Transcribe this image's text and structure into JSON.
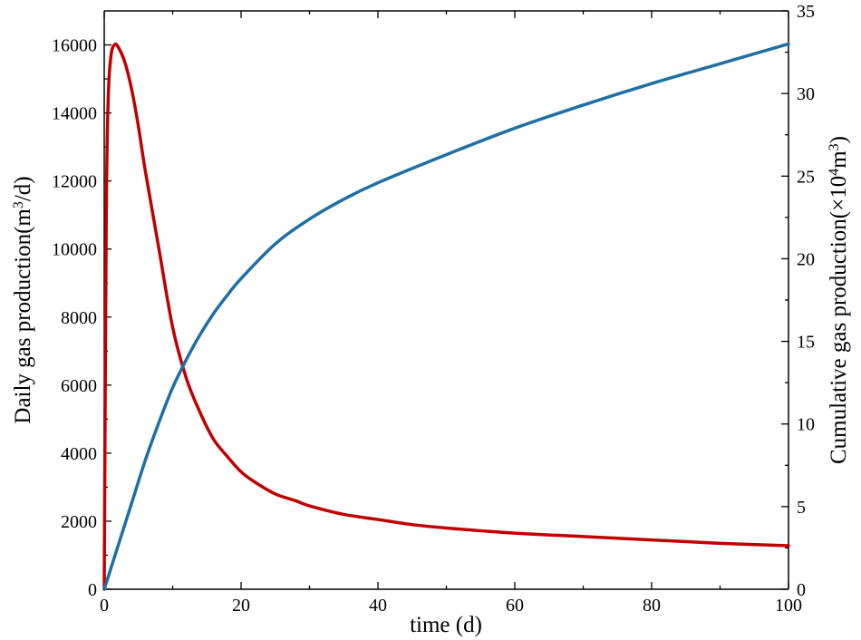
{
  "chart_data": {
    "type": "line",
    "xlabel": "time (d)",
    "ylabel_left": {
      "pre": "Daily gas production(m",
      "sup": "3",
      "post": "/d)"
    },
    "ylabel_right": {
      "pre": "Cumulative gas production(×10",
      "sup1": "4",
      "mid": "m",
      "sup2": "3",
      "post": ")"
    },
    "xlim": [
      0,
      100
    ],
    "ylim_left": [
      0,
      17000
    ],
    "ylim_right": [
      0,
      35
    ],
    "x_ticks": [
      0,
      20,
      40,
      60,
      80,
      100
    ],
    "y_left_ticks": [
      0,
      2000,
      4000,
      6000,
      8000,
      10000,
      12000,
      14000,
      16000
    ],
    "y_right_ticks": [
      0,
      5,
      10,
      15,
      20,
      25,
      30,
      35
    ],
    "grid": false,
    "legend": "none",
    "series": [
      {
        "axis": "left",
        "color": "#c00000",
        "x": [
          0,
          0.3,
          0.6,
          1.0,
          1.5,
          2,
          3,
          4,
          5,
          6,
          8,
          10,
          12,
          14,
          16,
          18,
          20,
          22,
          25,
          28,
          30,
          35,
          40,
          45,
          50,
          60,
          70,
          80,
          90,
          100
        ],
        "y": [
          0,
          11000,
          14500,
          15700,
          16000,
          15950,
          15500,
          14700,
          13600,
          12300,
          10000,
          7700,
          6200,
          5200,
          4400,
          3900,
          3450,
          3150,
          2800,
          2600,
          2450,
          2200,
          2050,
          1900,
          1800,
          1650,
          1550,
          1450,
          1350,
          1280
        ]
      },
      {
        "axis": "right",
        "color": "#1f6fa3",
        "x": [
          0,
          2,
          4,
          6,
          8,
          10,
          12,
          14,
          16,
          18,
          20,
          25,
          30,
          35,
          40,
          50,
          60,
          70,
          80,
          90,
          100
        ],
        "y": [
          0,
          2.6,
          5.2,
          7.8,
          10.1,
          12.2,
          13.9,
          15.4,
          16.7,
          17.8,
          18.8,
          20.9,
          22.4,
          23.6,
          24.6,
          26.3,
          27.9,
          29.3,
          30.6,
          31.8,
          33.0
        ]
      }
    ]
  }
}
